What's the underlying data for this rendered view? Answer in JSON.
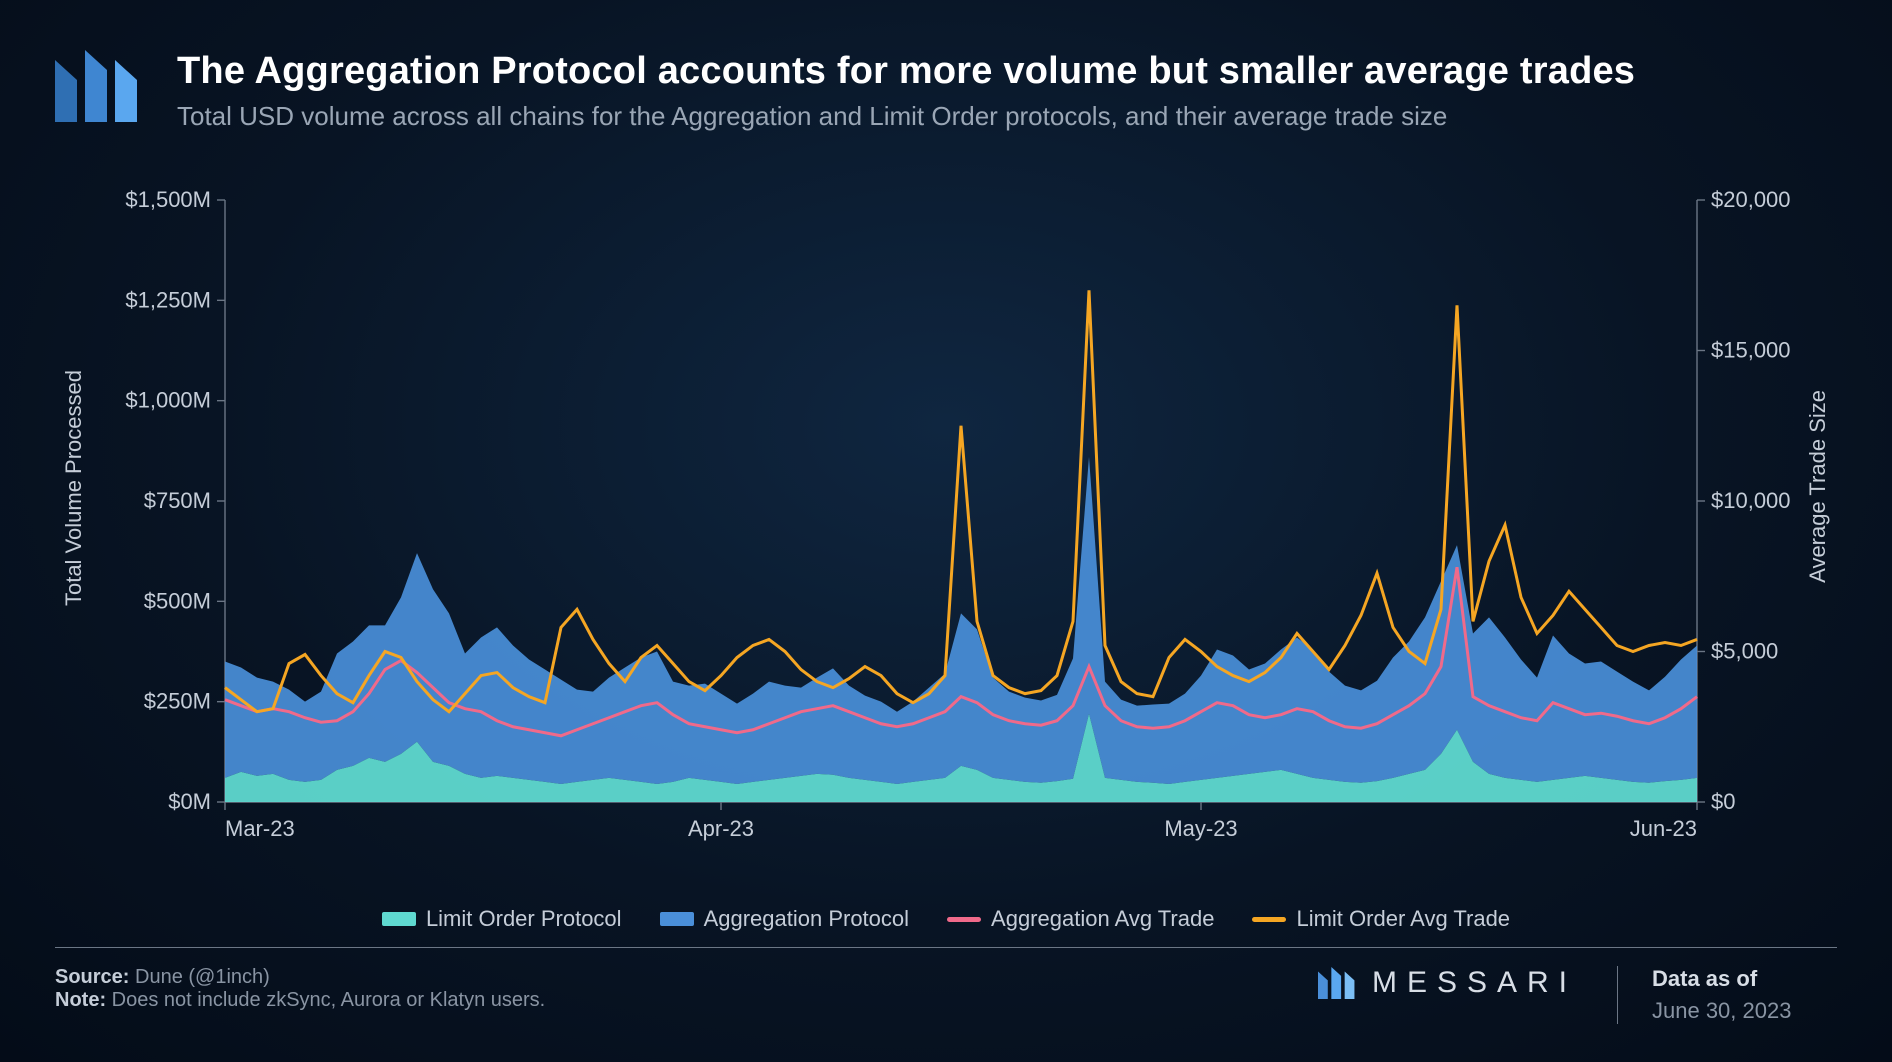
{
  "header": {
    "title": "The Aggregation Protocol accounts for more volume but smaller average trades",
    "subtitle": "Total USD volume across all chains for the Aggregation and Limit Order protocols, and their average trade size"
  },
  "chart": {
    "type": "combo-stacked-area-and-lines",
    "background": "transparent",
    "x": {
      "ticks": [
        "Mar-23",
        "Apr-23",
        "May-23",
        "Jun-23"
      ],
      "tick_positions": [
        0,
        31,
        61,
        92
      ],
      "domain": [
        0,
        92
      ]
    },
    "y_left": {
      "title": "Total Volume Processed",
      "domain": [
        0,
        1500
      ],
      "ticks": [
        0,
        250,
        500,
        750,
        1000,
        1250,
        1500
      ],
      "tick_labels": [
        "$0M",
        "$250M",
        "$500M",
        "$750M",
        "$1,000M",
        "$1,250M",
        "$1,500M"
      ]
    },
    "y_right": {
      "title": "Average Trade Size",
      "domain": [
        0,
        20000
      ],
      "ticks": [
        0,
        5000,
        10000,
        15000,
        20000
      ],
      "tick_labels": [
        "$0",
        "$5,000",
        "$10,000",
        "$15,000",
        "$20,000"
      ]
    },
    "colors": {
      "limit_order_area": "#5fd9d0",
      "aggregation_area": "#4a8fd9",
      "aggregation_avg_line": "#f06a8a",
      "limit_order_avg_line": "#f5a623",
      "axis": "#6b7685",
      "text": "#c5cdd8"
    },
    "line_width": 3,
    "series": {
      "limit_order_protocol_M": [
        60,
        75,
        65,
        70,
        55,
        50,
        55,
        80,
        90,
        110,
        100,
        120,
        150,
        100,
        90,
        70,
        60,
        65,
        60,
        55,
        50,
        45,
        50,
        55,
        60,
        55,
        50,
        45,
        50,
        60,
        55,
        50,
        45,
        50,
        55,
        60,
        65,
        70,
        68,
        60,
        55,
        50,
        45,
        50,
        55,
        60,
        90,
        80,
        60,
        55,
        50,
        48,
        52,
        58,
        220,
        60,
        55,
        50,
        48,
        45,
        50,
        55,
        60,
        65,
        70,
        75,
        80,
        70,
        60,
        55,
        50,
        48,
        52,
        60,
        70,
        80,
        120,
        180,
        100,
        70,
        60,
        55,
        50,
        55,
        60,
        65,
        60,
        55,
        50,
        48,
        52,
        55,
        60
      ],
      "aggregation_protocol_M": [
        290,
        260,
        245,
        230,
        225,
        200,
        220,
        290,
        310,
        330,
        340,
        390,
        470,
        430,
        380,
        300,
        350,
        370,
        330,
        300,
        280,
        260,
        230,
        220,
        250,
        280,
        310,
        330,
        250,
        230,
        240,
        220,
        200,
        220,
        245,
        230,
        220,
        240,
        265,
        230,
        210,
        200,
        180,
        200,
        230,
        260,
        380,
        350,
        250,
        220,
        210,
        205,
        215,
        300,
        640,
        240,
        200,
        190,
        195,
        200,
        220,
        260,
        320,
        300,
        260,
        270,
        300,
        340,
        320,
        270,
        240,
        230,
        250,
        300,
        330,
        380,
        430,
        460,
        320,
        390,
        350,
        300,
        260,
        360,
        310,
        280,
        290,
        270,
        250,
        230,
        260,
        300,
        330
      ],
      "aggregation_avg_trade": [
        3400,
        3200,
        3000,
        3100,
        3000,
        2800,
        2650,
        2700,
        3000,
        3600,
        4400,
        4700,
        4300,
        3800,
        3300,
        3100,
        3000,
        2700,
        2500,
        2400,
        2300,
        2200,
        2400,
        2600,
        2800,
        3000,
        3200,
        3300,
        2900,
        2600,
        2500,
        2400,
        2300,
        2400,
        2600,
        2800,
        3000,
        3100,
        3200,
        3000,
        2800,
        2600,
        2500,
        2600,
        2800,
        3000,
        3500,
        3300,
        2900,
        2700,
        2600,
        2550,
        2700,
        3200,
        4500,
        3200,
        2700,
        2500,
        2450,
        2500,
        2700,
        3000,
        3300,
        3200,
        2900,
        2800,
        2900,
        3100,
        3000,
        2700,
        2500,
        2450,
        2600,
        2900,
        3200,
        3600,
        4500,
        7800,
        3500,
        3200,
        3000,
        2800,
        2700,
        3300,
        3100,
        2900,
        2950,
        2850,
        2700,
        2600,
        2800,
        3100,
        3500
      ],
      "limit_order_avg_trade": [
        3800,
        3400,
        3000,
        3100,
        4600,
        4900,
        4200,
        3600,
        3300,
        4200,
        5000,
        4800,
        4000,
        3400,
        3000,
        3600,
        4200,
        4300,
        3800,
        3500,
        3300,
        5800,
        6400,
        5400,
        4600,
        4000,
        4800,
        5200,
        4600,
        4000,
        3700,
        4200,
        4800,
        5200,
        5400,
        5000,
        4400,
        4000,
        3800,
        4100,
        4500,
        4200,
        3600,
        3300,
        3600,
        4200,
        12500,
        6000,
        4200,
        3800,
        3600,
        3700,
        4200,
        6000,
        17000,
        5200,
        4000,
        3600,
        3500,
        4800,
        5400,
        5000,
        4500,
        4200,
        4000,
        4300,
        4800,
        5600,
        5000,
        4400,
        5200,
        6200,
        7600,
        5800,
        5000,
        4600,
        6400,
        16500,
        6000,
        8000,
        9200,
        6800,
        5600,
        6200,
        7000,
        6400,
        5800,
        5200,
        5000,
        5200,
        5300,
        5200,
        5400
      ]
    },
    "legend": [
      {
        "label": "Limit Order Protocol",
        "color": "#5fd9d0",
        "kind": "area"
      },
      {
        "label": "Aggregation Protocol",
        "color": "#4a8fd9",
        "kind": "area"
      },
      {
        "label": "Aggregation Avg Trade",
        "color": "#f06a8a",
        "kind": "line"
      },
      {
        "label": "Limit Order Avg Trade",
        "color": "#f5a623",
        "kind": "line"
      }
    ]
  },
  "footer": {
    "source_label": "Source:",
    "source_value": "Dune (@1inch)",
    "note_label": "Note:",
    "note_value": "Does not include zkSync, Aurora or Klatyn users.",
    "brand": "MESSARI",
    "asof_label": "Data as of",
    "asof_value": "June 30, 2023"
  }
}
